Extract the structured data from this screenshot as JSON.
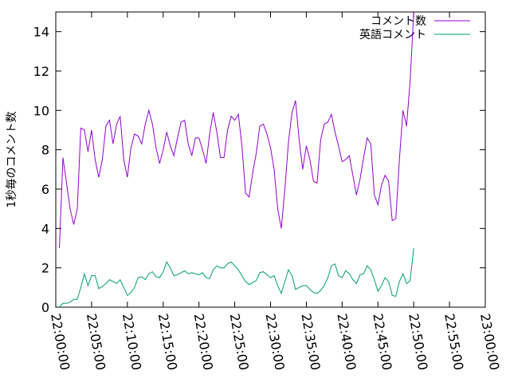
{
  "chart_data": {
    "type": "line",
    "title": "",
    "xlabel": "",
    "ylabel": "1秒毎のコメント数",
    "xlim": [
      "22:00:00",
      "23:00:00"
    ],
    "ylim": [
      0,
      15
    ],
    "yticks": [
      0,
      2,
      4,
      6,
      8,
      10,
      12,
      14
    ],
    "xticks": [
      "22:00:00",
      "22:05:00",
      "22:10:00",
      "22:15:00",
      "22:20:00",
      "22:25:00",
      "22:30:00",
      "22:35:00",
      "22:40:00",
      "22:45:00",
      "22:50:00",
      "22:55:00",
      "23:00:00"
    ],
    "grid": false,
    "legend_position": "top-right",
    "series": [
      {
        "name": "コメント数",
        "color": "#9400d3",
        "points": [
          [
            "22:00:30",
            3.0
          ],
          [
            "22:01:00",
            7.6
          ],
          [
            "22:01:30",
            6.3
          ],
          [
            "22:02:00",
            5.0
          ],
          [
            "22:02:30",
            4.2
          ],
          [
            "22:03:00",
            5.0
          ],
          [
            "22:03:30",
            9.1
          ],
          [
            "22:04:00",
            9.0
          ],
          [
            "22:04:30",
            7.9
          ],
          [
            "22:05:00",
            9.0
          ],
          [
            "22:05:30",
            7.5
          ],
          [
            "22:06:00",
            6.6
          ],
          [
            "22:06:30",
            7.5
          ],
          [
            "22:07:00",
            9.2
          ],
          [
            "22:07:30",
            9.5
          ],
          [
            "22:08:00",
            8.3
          ],
          [
            "22:08:30",
            9.3
          ],
          [
            "22:09:00",
            9.7
          ],
          [
            "22:09:30",
            7.5
          ],
          [
            "22:10:00",
            6.6
          ],
          [
            "22:10:30",
            8.1
          ],
          [
            "22:11:00",
            8.8
          ],
          [
            "22:11:30",
            8.7
          ],
          [
            "22:12:00",
            8.3
          ],
          [
            "22:12:30",
            9.3
          ],
          [
            "22:13:00",
            10.0
          ],
          [
            "22:13:30",
            9.3
          ],
          [
            "22:14:00",
            8.1
          ],
          [
            "22:14:30",
            7.3
          ],
          [
            "22:15:00",
            8.0
          ],
          [
            "22:15:30",
            8.9
          ],
          [
            "22:16:00",
            8.2
          ],
          [
            "22:16:30",
            7.7
          ],
          [
            "22:17:00",
            8.6
          ],
          [
            "22:17:30",
            9.4
          ],
          [
            "22:18:00",
            9.5
          ],
          [
            "22:18:30",
            8.3
          ],
          [
            "22:19:00",
            7.7
          ],
          [
            "22:19:30",
            8.6
          ],
          [
            "22:20:00",
            8.6
          ],
          [
            "22:20:30",
            8.0
          ],
          [
            "22:21:00",
            7.3
          ],
          [
            "22:21:30",
            8.8
          ],
          [
            "22:22:00",
            9.9
          ],
          [
            "22:22:30",
            8.9
          ],
          [
            "22:23:00",
            7.6
          ],
          [
            "22:23:30",
            7.6
          ],
          [
            "22:24:00",
            9.0
          ],
          [
            "22:24:30",
            9.7
          ],
          [
            "22:25:00",
            9.5
          ],
          [
            "22:25:30",
            9.8
          ],
          [
            "22:26:00",
            8.2
          ],
          [
            "22:26:30",
            5.8
          ],
          [
            "22:27:00",
            5.6
          ],
          [
            "22:27:30",
            6.8
          ],
          [
            "22:28:00",
            7.8
          ],
          [
            "22:28:30",
            9.2
          ],
          [
            "22:29:00",
            9.3
          ],
          [
            "22:29:30",
            8.8
          ],
          [
            "22:30:00",
            8.1
          ],
          [
            "22:30:30",
            7.0
          ],
          [
            "22:31:00",
            5.0
          ],
          [
            "22:31:30",
            4.0
          ],
          [
            "22:32:00",
            6.0
          ],
          [
            "22:32:30",
            8.4
          ],
          [
            "22:33:00",
            9.9
          ],
          [
            "22:33:30",
            10.5
          ],
          [
            "22:34:00",
            8.5
          ],
          [
            "22:34:30",
            7.0
          ],
          [
            "22:35:00",
            8.2
          ],
          [
            "22:35:30",
            7.5
          ],
          [
            "22:36:00",
            6.4
          ],
          [
            "22:36:30",
            6.3
          ],
          [
            "22:37:00",
            8.5
          ],
          [
            "22:37:30",
            9.3
          ],
          [
            "22:38:00",
            9.4
          ],
          [
            "22:38:30",
            9.8
          ],
          [
            "22:39:00",
            8.9
          ],
          [
            "22:39:30",
            8.2
          ],
          [
            "22:40:00",
            7.4
          ],
          [
            "22:40:30",
            7.5
          ],
          [
            "22:41:00",
            7.7
          ],
          [
            "22:41:30",
            6.7
          ],
          [
            "22:42:00",
            5.7
          ],
          [
            "22:42:30",
            6.5
          ],
          [
            "22:43:00",
            7.6
          ],
          [
            "22:43:30",
            8.6
          ],
          [
            "22:44:00",
            8.3
          ],
          [
            "22:44:30",
            5.7
          ],
          [
            "22:45:00",
            5.2
          ],
          [
            "22:45:30",
            6.2
          ],
          [
            "22:46:00",
            6.7
          ],
          [
            "22:46:30",
            6.4
          ],
          [
            "22:47:00",
            4.4
          ],
          [
            "22:47:30",
            4.5
          ],
          [
            "22:48:00",
            7.5
          ],
          [
            "22:48:30",
            10.0
          ],
          [
            "22:49:00",
            9.2
          ],
          [
            "22:49:30",
            11.5
          ],
          [
            "22:50:00",
            15.0
          ]
        ]
      },
      {
        "name": "英語コメント",
        "color": "#009e73",
        "points": [
          [
            "22:00:30",
            0.0
          ],
          [
            "22:01:00",
            0.2
          ],
          [
            "22:01:30",
            0.2
          ],
          [
            "22:02:00",
            0.25
          ],
          [
            "22:02:30",
            0.4
          ],
          [
            "22:03:00",
            0.4
          ],
          [
            "22:03:30",
            1.0
          ],
          [
            "22:04:00",
            1.7
          ],
          [
            "22:04:30",
            1.1
          ],
          [
            "22:05:00",
            1.6
          ],
          [
            "22:05:30",
            1.6
          ],
          [
            "22:06:00",
            0.95
          ],
          [
            "22:06:30",
            1.05
          ],
          [
            "22:07:00",
            1.2
          ],
          [
            "22:07:30",
            1.4
          ],
          [
            "22:08:00",
            1.3
          ],
          [
            "22:08:30",
            1.2
          ],
          [
            "22:09:00",
            1.4
          ],
          [
            "22:09:30",
            1.0
          ],
          [
            "22:10:00",
            0.6
          ],
          [
            "22:10:30",
            0.75
          ],
          [
            "22:11:00",
            1.0
          ],
          [
            "22:11:30",
            1.5
          ],
          [
            "22:12:00",
            1.55
          ],
          [
            "22:12:30",
            1.4
          ],
          [
            "22:13:00",
            1.7
          ],
          [
            "22:13:30",
            1.8
          ],
          [
            "22:14:00",
            1.55
          ],
          [
            "22:14:30",
            1.5
          ],
          [
            "22:15:00",
            1.8
          ],
          [
            "22:15:30",
            2.3
          ],
          [
            "22:16:00",
            2.0
          ],
          [
            "22:16:30",
            1.6
          ],
          [
            "22:17:00",
            1.65
          ],
          [
            "22:17:30",
            1.75
          ],
          [
            "22:18:00",
            1.85
          ],
          [
            "22:18:30",
            1.7
          ],
          [
            "22:19:00",
            1.75
          ],
          [
            "22:19:30",
            1.7
          ],
          [
            "22:20:00",
            1.65
          ],
          [
            "22:20:30",
            1.75
          ],
          [
            "22:21:00",
            1.5
          ],
          [
            "22:21:30",
            1.45
          ],
          [
            "22:22:00",
            1.9
          ],
          [
            "22:22:30",
            2.1
          ],
          [
            "22:23:00",
            2.0
          ],
          [
            "22:23:30",
            2.0
          ],
          [
            "22:24:00",
            2.2
          ],
          [
            "22:24:30",
            2.3
          ],
          [
            "22:25:00",
            2.1
          ],
          [
            "22:25:30",
            1.9
          ],
          [
            "22:26:00",
            1.6
          ],
          [
            "22:26:30",
            1.3
          ],
          [
            "22:27:00",
            1.15
          ],
          [
            "22:27:30",
            1.25
          ],
          [
            "22:28:00",
            1.35
          ],
          [
            "22:28:30",
            1.75
          ],
          [
            "22:29:00",
            1.8
          ],
          [
            "22:29:30",
            1.65
          ],
          [
            "22:30:00",
            1.5
          ],
          [
            "22:30:30",
            1.6
          ],
          [
            "22:31:00",
            1.1
          ],
          [
            "22:31:30",
            0.7
          ],
          [
            "22:32:00",
            1.3
          ],
          [
            "22:32:30",
            1.9
          ],
          [
            "22:33:00",
            1.6
          ],
          [
            "22:33:30",
            0.9
          ],
          [
            "22:34:00",
            1.0
          ],
          [
            "22:34:30",
            1.1
          ],
          [
            "22:35:00",
            1.1
          ],
          [
            "22:35:30",
            0.9
          ],
          [
            "22:36:00",
            0.75
          ],
          [
            "22:36:30",
            0.7
          ],
          [
            "22:37:00",
            0.85
          ],
          [
            "22:37:30",
            1.1
          ],
          [
            "22:38:00",
            1.5
          ],
          [
            "22:38:30",
            2.1
          ],
          [
            "22:39:00",
            2.2
          ],
          [
            "22:39:30",
            1.6
          ],
          [
            "22:40:00",
            1.5
          ],
          [
            "22:40:30",
            1.85
          ],
          [
            "22:41:00",
            1.7
          ],
          [
            "22:41:30",
            1.4
          ],
          [
            "22:42:00",
            1.2
          ],
          [
            "22:42:30",
            1.65
          ],
          [
            "22:43:00",
            1.7
          ],
          [
            "22:43:30",
            2.1
          ],
          [
            "22:44:00",
            1.9
          ],
          [
            "22:44:30",
            1.4
          ],
          [
            "22:45:00",
            0.8
          ],
          [
            "22:45:30",
            1.1
          ],
          [
            "22:46:00",
            1.5
          ],
          [
            "22:46:30",
            1.3
          ],
          [
            "22:47:00",
            0.6
          ],
          [
            "22:47:30",
            0.55
          ],
          [
            "22:48:00",
            1.3
          ],
          [
            "22:48:30",
            1.7
          ],
          [
            "22:49:00",
            1.2
          ],
          [
            "22:49:30",
            1.35
          ],
          [
            "22:50:00",
            3.0
          ]
        ]
      }
    ]
  }
}
